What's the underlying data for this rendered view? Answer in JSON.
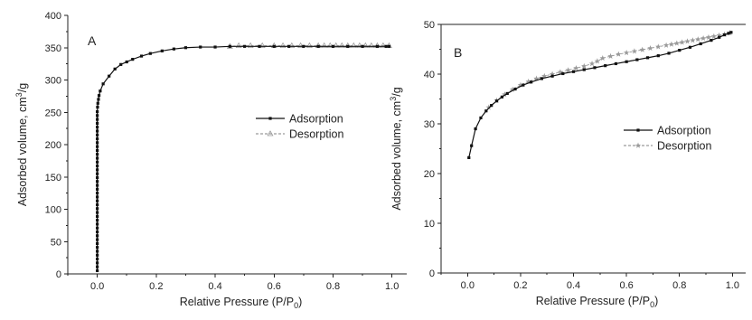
{
  "chart_data": [
    {
      "type": "line",
      "panel_label": "A",
      "xlabel": "Relative Pressure (P/P",
      "xlabel_sub": "0",
      "xlabel_end": ")",
      "ylabel": "Adsorbed volume, cm",
      "ylabel_sup": "3",
      "ylabel_end": "/g",
      "xlim": [
        -0.1,
        1.05
      ],
      "ylim": [
        0,
        400
      ],
      "xticks": [
        0.0,
        0.2,
        0.4,
        0.6,
        0.8,
        1.0
      ],
      "xtick_labels": [
        "0.0",
        "0.2",
        "0.4",
        "0.6",
        "0.8",
        "1.0"
      ],
      "yticks": [
        0,
        50,
        100,
        150,
        200,
        250,
        300,
        350,
        400
      ],
      "ytick_labels": [
        "0",
        "50",
        "100",
        "150",
        "200",
        "250",
        "300",
        "350",
        "400"
      ],
      "grid": false,
      "legend_position": "middle-right",
      "series": [
        {
          "name": "Adsorption",
          "color": "#111111",
          "marker": "square",
          "dashed": false,
          "x": [
            0.0,
            0.0,
            0.0,
            0.0,
            0.0,
            0.0,
            0.0,
            0.0,
            0.0,
            0.0,
            0.0,
            0.0,
            0.0,
            0.0,
            0.0,
            0.0,
            0.0,
            0.0,
            0.0,
            0.0,
            0.0,
            0.0,
            0.0,
            0.0,
            0.0,
            0.0,
            0.0,
            0.0,
            0.0,
            0.0,
            0.0,
            0.0,
            0.0,
            0.0,
            0.0,
            0.0,
            0.0,
            0.0,
            0.0,
            0.0,
            0.0,
            0.0,
            0.001,
            0.002,
            0.004,
            0.006,
            0.01,
            0.02,
            0.04,
            0.06,
            0.08,
            0.1,
            0.12,
            0.15,
            0.18,
            0.22,
            0.26,
            0.3,
            0.35,
            0.4,
            0.45,
            0.5,
            0.55,
            0.6,
            0.65,
            0.7,
            0.75,
            0.8,
            0.85,
            0.9,
            0.95,
            0.98,
            0.99
          ],
          "y": [
            5,
            11,
            17,
            23,
            29,
            35,
            41,
            47,
            53,
            59,
            65,
            71,
            77,
            83,
            89,
            95,
            101,
            107,
            113,
            119,
            125,
            131,
            137,
            143,
            149,
            155,
            161,
            167,
            173,
            179,
            185,
            191,
            197,
            203,
            209,
            215,
            221,
            227,
            233,
            239,
            245,
            251,
            258,
            264,
            270,
            276,
            283,
            294,
            306,
            317,
            324,
            328,
            332,
            337,
            341,
            345,
            348,
            350,
            351,
            351,
            352,
            352,
            352,
            352,
            352,
            352,
            352,
            352,
            352,
            352,
            352,
            352,
            352
          ]
        },
        {
          "name": "Desorption",
          "color": "#9a9a9a",
          "marker": "triangle",
          "dashed": true,
          "x": [
            0.99,
            0.97,
            0.95,
            0.93,
            0.91,
            0.89,
            0.87,
            0.85,
            0.83,
            0.81,
            0.79,
            0.77,
            0.75,
            0.72,
            0.69,
            0.66,
            0.63,
            0.6,
            0.56,
            0.52,
            0.48,
            0.45
          ],
          "y": [
            353,
            353,
            353,
            353,
            353,
            353,
            353,
            353,
            353,
            353,
            353,
            353,
            353,
            353,
            353,
            353,
            353,
            353,
            353,
            353,
            353,
            352
          ]
        }
      ]
    },
    {
      "type": "line",
      "panel_label": "B",
      "xlabel": "Relative Pressure (P/P",
      "xlabel_sub": "0",
      "xlabel_end": ")",
      "ylabel": "Adsorbed volume, cm",
      "ylabel_sup": "3",
      "ylabel_end": "/g",
      "xlim": [
        -0.1,
        1.05
      ],
      "ylim": [
        0,
        50
      ],
      "xticks": [
        0.0,
        0.2,
        0.4,
        0.6,
        0.8,
        1.0
      ],
      "xtick_labels": [
        "0.0",
        "0.2",
        "0.4",
        "0.6",
        "0.8",
        "1.0"
      ],
      "yticks": [
        0,
        10,
        20,
        30,
        40,
        50
      ],
      "ytick_labels": [
        "0",
        "10",
        "20",
        "30",
        "40",
        "50"
      ],
      "grid": false,
      "legend_position": "middle-right",
      "series": [
        {
          "name": "Adsorption",
          "color": "#111111",
          "marker": "square",
          "dashed": false,
          "x": [
            0.005,
            0.015,
            0.03,
            0.05,
            0.07,
            0.09,
            0.11,
            0.13,
            0.15,
            0.18,
            0.21,
            0.24,
            0.28,
            0.32,
            0.36,
            0.4,
            0.44,
            0.48,
            0.52,
            0.56,
            0.6,
            0.64,
            0.68,
            0.72,
            0.76,
            0.8,
            0.84,
            0.88,
            0.92,
            0.95,
            0.97,
            0.985,
            0.995
          ],
          "y": [
            23.2,
            25.6,
            29.0,
            31.2,
            32.6,
            33.7,
            34.6,
            35.4,
            36.1,
            37.0,
            37.8,
            38.4,
            39.1,
            39.6,
            40.1,
            40.5,
            40.9,
            41.3,
            41.7,
            42.1,
            42.5,
            42.9,
            43.3,
            43.7,
            44.2,
            44.8,
            45.4,
            46.1,
            46.8,
            47.4,
            47.9,
            48.2,
            48.4
          ]
        },
        {
          "name": "Desorption",
          "color": "#9a9a9a",
          "marker": "star",
          "dashed": true,
          "x": [
            0.99,
            0.97,
            0.95,
            0.93,
            0.91,
            0.89,
            0.87,
            0.85,
            0.83,
            0.81,
            0.79,
            0.77,
            0.75,
            0.72,
            0.69,
            0.66,
            0.63,
            0.6,
            0.57,
            0.54,
            0.51,
            0.49,
            0.47,
            0.44,
            0.41,
            0.38,
            0.35,
            0.32,
            0.29,
            0.26,
            0.23,
            0.2,
            0.17,
            0.14,
            0.11,
            0.08
          ],
          "y": [
            48.3,
            48.0,
            47.8,
            47.6,
            47.4,
            47.2,
            47.0,
            46.8,
            46.6,
            46.4,
            46.2,
            46.0,
            45.8,
            45.5,
            45.2,
            44.9,
            44.6,
            44.3,
            44.0,
            43.6,
            43.2,
            42.6,
            42.1,
            41.6,
            41.2,
            40.8,
            40.4,
            40.0,
            39.6,
            39.1,
            38.5,
            37.8,
            36.9,
            35.9,
            34.7,
            33.3
          ]
        }
      ]
    }
  ]
}
